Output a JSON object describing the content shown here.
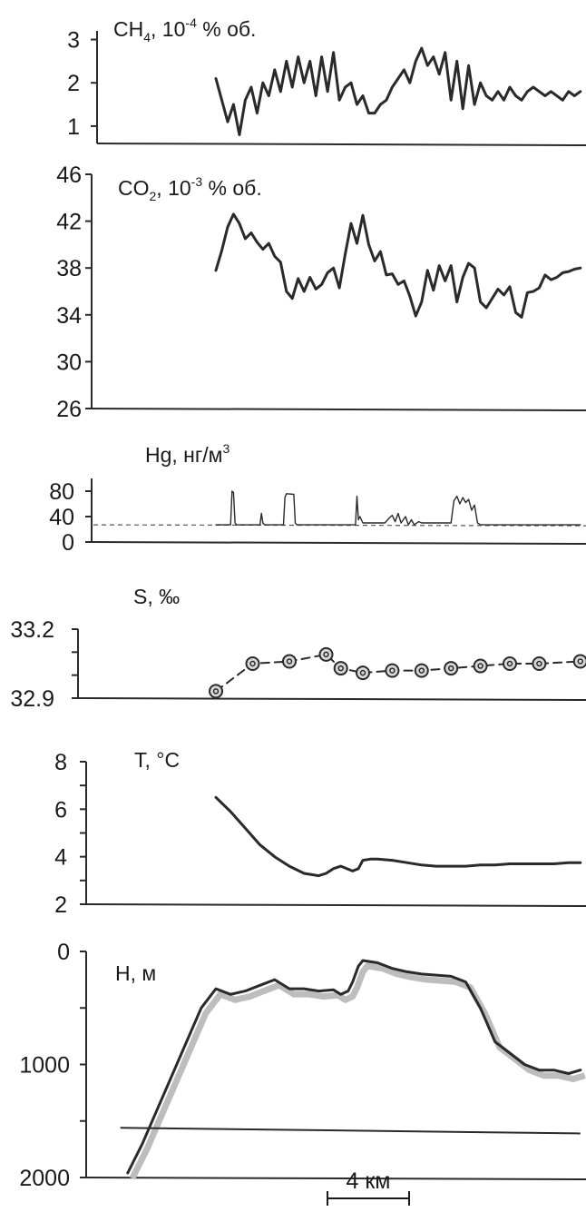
{
  "scale_bar": {
    "label": "4 км",
    "km": 4
  },
  "chart_data": [
    {
      "type": "line",
      "title": "CH4, 10^-4 % об.",
      "title_parts": {
        "base": "CH",
        "sub": "4",
        "mid": ", 10",
        "sup": "-4",
        "tail": " % об."
      },
      "ylim": [
        0.6,
        3.2
      ],
      "yticks": [
        1,
        2,
        3
      ],
      "ytick_labels": [
        "1",
        "2",
        "3"
      ],
      "x": [
        0,
        0.4,
        0.8,
        1.2,
        1.6,
        2,
        2.4,
        2.8,
        3.2,
        3.6,
        4,
        4.4,
        4.8,
        5.2,
        5.6,
        6,
        6.4,
        6.8,
        7.2,
        7.6,
        8,
        8.4,
        8.8,
        9.2,
        9.6,
        10,
        10.4,
        10.8,
        11.2,
        11.6,
        12,
        12.4,
        12.8,
        13.2,
        13.6,
        14,
        14.4,
        14.8,
        15.2,
        15.6,
        16,
        16.4,
        16.8,
        17.2,
        17.6,
        18,
        18.4,
        18.8,
        19.2,
        19.6,
        20,
        20.4,
        20.8,
        21.2,
        21.6,
        22,
        22.4,
        22.8,
        23.2,
        23.6,
        24,
        24.4,
        24.8
      ],
      "values": [
        2.1,
        1.6,
        1.1,
        1.5,
        0.8,
        1.6,
        1.9,
        1.3,
        2.0,
        1.7,
        2.3,
        1.8,
        2.5,
        1.9,
        2.6,
        2.0,
        2.5,
        1.7,
        2.6,
        1.8,
        2.7,
        1.6,
        1.9,
        2.0,
        1.5,
        1.7,
        1.3,
        1.3,
        1.5,
        1.6,
        1.9,
        2.1,
        2.3,
        2.0,
        2.5,
        2.8,
        2.4,
        2.6,
        2.2,
        2.7,
        1.6,
        2.5,
        1.4,
        2.4,
        1.5,
        2.0,
        1.7,
        1.6,
        1.8,
        1.6,
        1.9,
        1.7,
        1.6,
        1.8,
        1.9,
        1.8,
        1.7,
        1.8,
        1.7,
        1.6,
        1.8,
        1.7,
        1.8
      ]
    },
    {
      "type": "line",
      "title": "CO2, 10^-3 % об.",
      "title_parts": {
        "base": "CO",
        "sub": "2",
        "mid": ",  10",
        "sup": "-3",
        "tail": " % об."
      },
      "ylim": [
        26,
        46
      ],
      "yticks": [
        26,
        30,
        34,
        38,
        42,
        46
      ],
      "ytick_labels": [
        "26",
        "30",
        "34",
        "38",
        "42",
        "46"
      ],
      "x": [
        0,
        0.4,
        0.8,
        1.2,
        1.6,
        2,
        2.4,
        2.8,
        3.2,
        3.6,
        4,
        4.4,
        4.8,
        5.2,
        5.6,
        6,
        6.4,
        6.8,
        7.2,
        7.6,
        8,
        8.4,
        8.8,
        9.2,
        9.6,
        10,
        10.4,
        10.8,
        11.2,
        11.6,
        12,
        12.4,
        12.8,
        13.2,
        13.6,
        14,
        14.4,
        14.8,
        15.2,
        15.6,
        16,
        16.4,
        16.8,
        17.2,
        17.6,
        18,
        18.4,
        18.8,
        19.2,
        19.6,
        20,
        20.4,
        20.8,
        21.2,
        21.6,
        22,
        22.4,
        22.8,
        23.2,
        23.6,
        24,
        24.4,
        24.8
      ],
      "values": [
        37.8,
        39.5,
        41.5,
        42.6,
        41.8,
        40.5,
        41.0,
        40.2,
        39.6,
        40.1,
        39.0,
        38.5,
        36.0,
        35.4,
        37.1,
        36.0,
        37.2,
        36.2,
        36.6,
        37.6,
        38.0,
        36.3,
        39.2,
        41.8,
        40.1,
        42.5,
        40.0,
        38.6,
        39.4,
        37.4,
        37.5,
        36.6,
        36.9,
        35.6,
        33.9,
        35.1,
        37.8,
        36.1,
        38.2,
        36.9,
        38.2,
        35.1,
        37.2,
        38.4,
        38.0,
        35.1,
        34.6,
        35.4,
        36.2,
        35.7,
        36.4,
        34.2,
        33.8,
        35.9,
        36.0,
        36.3,
        37.4,
        37.0,
        37.2,
        37.6,
        37.7,
        37.9,
        38.0
      ]
    },
    {
      "type": "line",
      "title": "Hg, нг/м3",
      "title_parts": {
        "base": "Hg,  нг/м",
        "sup": "3"
      },
      "ylim": [
        0,
        100
      ],
      "yticks": [
        0,
        40,
        80
      ],
      "ytick_labels": [
        "0",
        "40",
        "80"
      ],
      "background_level": 27,
      "series": [
        {
          "name": "",
          "style": "solid",
          "x": [
            0,
            1.0,
            1.1,
            1.2,
            1.3,
            1.4,
            1.5,
            3.0,
            3.1,
            3.2,
            3.3,
            4.6,
            4.7,
            4.8,
            5.3,
            5.4,
            5.5,
            9.5,
            9.6,
            9.7,
            9.8,
            10.0,
            11.5,
            11.8,
            12.0,
            12.2,
            12.4,
            12.6,
            12.9,
            13.1,
            13.3,
            13.5,
            13.8,
            14.0,
            16.0,
            16.2,
            16.4,
            16.6,
            16.8,
            17.0,
            17.2,
            17.4,
            17.6,
            17.8,
            18.0,
            18.2,
            18.6,
            24.8
          ],
          "values": [
            27,
            27,
            80,
            78,
            30,
            27,
            27,
            27,
            45,
            30,
            27,
            27,
            70,
            76,
            75,
            30,
            27,
            27,
            72,
            35,
            40,
            30,
            30,
            38,
            42,
            32,
            45,
            30,
            40,
            27,
            35,
            27,
            32,
            30,
            30,
            65,
            72,
            60,
            70,
            62,
            67,
            50,
            58,
            30,
            27,
            27,
            27,
            27
          ]
        }
      ]
    },
    {
      "type": "line",
      "title": "S, ‰",
      "title_parts": {
        "base": "S, ‰"
      },
      "ylim": [
        32.9,
        33.2
      ],
      "yticks": [
        32.9,
        33.0,
        33.1,
        33.2
      ],
      "ytick_labels": [
        "32.9",
        "",
        "",
        "33.2"
      ],
      "x": [
        0,
        2.5,
        5,
        7.5,
        8.5,
        10,
        12,
        14,
        16,
        18,
        20,
        22,
        24.8
      ],
      "values": [
        32.93,
        33.05,
        33.06,
        33.09,
        33.03,
        33.01,
        33.02,
        33.02,
        33.03,
        33.04,
        33.05,
        33.05,
        33.06
      ]
    },
    {
      "type": "line",
      "title": "T, °C",
      "title_parts": {
        "base": "T,  °C"
      },
      "ylim": [
        2,
        8
      ],
      "yticks": [
        2,
        3,
        4,
        5,
        6,
        7,
        8
      ],
      "ytick_labels": [
        "2",
        "",
        "4",
        "",
        "6",
        "",
        "8"
      ],
      "x": [
        0,
        1,
        2,
        3,
        4,
        5,
        6,
        7,
        7.5,
        8,
        8.5,
        9.3,
        9.7,
        10,
        10.5,
        11,
        12,
        13,
        14,
        15,
        16,
        17,
        18,
        19,
        20,
        21,
        22,
        23,
        24,
        24.8
      ],
      "values": [
        6.5,
        5.9,
        5.2,
        4.5,
        4.0,
        3.6,
        3.3,
        3.2,
        3.3,
        3.5,
        3.6,
        3.4,
        3.5,
        3.85,
        3.9,
        3.9,
        3.85,
        3.75,
        3.65,
        3.6,
        3.6,
        3.6,
        3.65,
        3.65,
        3.7,
        3.7,
        3.7,
        3.7,
        3.75,
        3.75
      ]
    },
    {
      "type": "line",
      "title": "H, м",
      "title_parts": {
        "base": "H,  м"
      },
      "ylim": [
        0,
        2000
      ],
      "yticks": [
        0,
        500,
        1000,
        1500,
        2000
      ],
      "ytick_labels": [
        "0",
        "",
        "1000",
        "",
        "2000"
      ],
      "inverted": true,
      "x": [
        -6,
        -5,
        -4,
        -3,
        -2,
        -1,
        0,
        1,
        2,
        3,
        4,
        5,
        6,
        7,
        8,
        8.5,
        9,
        9.3,
        9.7,
        10,
        11,
        12,
        13,
        14,
        15,
        16,
        17,
        18,
        19,
        20,
        21,
        22,
        23,
        24,
        24.8
      ],
      "values": [
        1960,
        1700,
        1400,
        1100,
        800,
        500,
        330,
        380,
        350,
        300,
        250,
        330,
        330,
        350,
        340,
        380,
        350,
        270,
        130,
        80,
        100,
        150,
        180,
        200,
        210,
        220,
        270,
        500,
        800,
        900,
        1000,
        1050,
        1050,
        1080,
        1050
      ],
      "baseline_m": [
        1560,
        1610
      ],
      "baseline_x": [
        -6.5,
        24.8
      ]
    }
  ]
}
